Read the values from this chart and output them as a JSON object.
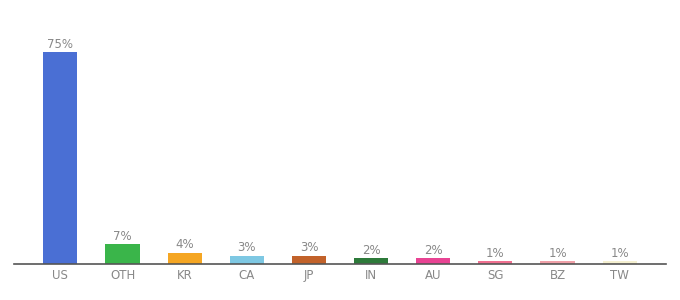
{
  "categories": [
    "US",
    "OTH",
    "KR",
    "CA",
    "JP",
    "IN",
    "AU",
    "SG",
    "BZ",
    "TW"
  ],
  "values": [
    75,
    7,
    4,
    3,
    3,
    2,
    2,
    1,
    1,
    1
  ],
  "bar_colors": [
    "#4a6fd4",
    "#3ab54a",
    "#f5a623",
    "#7ec8e3",
    "#c2622a",
    "#2d7a3a",
    "#e84393",
    "#f07090",
    "#f0a0a8",
    "#f5f0d0"
  ],
  "labels": [
    "75%",
    "7%",
    "4%",
    "3%",
    "3%",
    "2%",
    "2%",
    "1%",
    "1%",
    "1%"
  ],
  "ylim": [
    0,
    85
  ],
  "bg_color": "#ffffff",
  "label_color": "#888888",
  "label_fontsize": 8.5,
  "tick_fontsize": 8.5,
  "tick_color": "#888888",
  "bar_width": 0.55
}
